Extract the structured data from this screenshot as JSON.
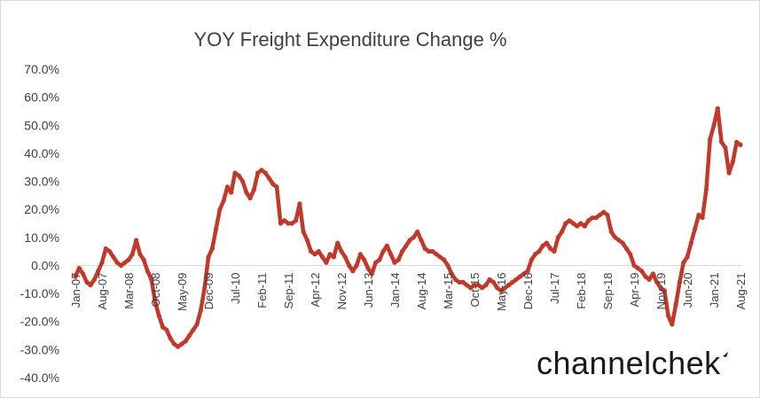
{
  "chart_data": {
    "type": "line",
    "title": "YOY Freight Expenditure Change %",
    "xlabel": "",
    "ylabel": "",
    "ylim": [
      -40,
      70
    ],
    "ytick_values": [
      70,
      60,
      50,
      40,
      30,
      20,
      10,
      0,
      -10,
      -20,
      -30,
      -40
    ],
    "ytick_labels": [
      "70.0%",
      "60.0%",
      "50.0%",
      "40.0%",
      "30.0%",
      "20.0%",
      "10.0%",
      "0.0%",
      "-10.0%",
      "-20.0%",
      "-30.0%",
      "-40.0%"
    ],
    "xtick_labels": [
      "Jan-07",
      "Aug-07",
      "Mar-08",
      "Oct-08",
      "May-09",
      "Dec-09",
      "Jul-10",
      "Feb-11",
      "Sep-11",
      "Apr-12",
      "Nov-12",
      "Jun-13",
      "Jan-14",
      "Aug-14",
      "Mar-15",
      "Oct-15",
      "May-16",
      "Dec-16",
      "Jul-17",
      "Feb-18",
      "Sep-18",
      "Apr-19",
      "Nov-19",
      "Jun-20",
      "Jan-21",
      "Aug-21"
    ],
    "x_start": "Jan-07",
    "x_frequency": "monthly",
    "grid": false,
    "legend": "none",
    "series": [
      {
        "name": "YOY Freight Expenditure Change %",
        "color": "#c0392b",
        "values": [
          -4,
          -1,
          -3,
          -6,
          -7,
          -5,
          -2,
          1,
          6,
          5,
          3,
          1,
          0,
          1,
          2,
          4,
          9,
          4,
          2,
          -2,
          -5,
          -13,
          -18,
          -22,
          -23,
          -26,
          -28,
          -29,
          -28,
          -27,
          -25,
          -23,
          -21,
          -16,
          -8,
          3,
          6,
          13,
          20,
          23,
          28,
          26,
          33,
          32,
          30,
          26,
          24,
          27,
          33,
          34,
          33,
          31,
          29,
          28,
          15,
          16,
          15,
          15,
          16,
          22,
          12,
          9,
          5,
          4,
          5,
          3,
          1,
          4,
          3,
          8,
          5,
          3,
          0,
          -2,
          0,
          4,
          2,
          -1,
          -3,
          1,
          2,
          5,
          7,
          4,
          1,
          2,
          5,
          7,
          9,
          10,
          12,
          9,
          6,
          5,
          5,
          4,
          3,
          2,
          0,
          -3,
          -5,
          -6,
          -6,
          -7,
          -8,
          -7,
          -7,
          -8,
          -7,
          -5,
          -6,
          -8,
          -9,
          -8,
          -7,
          -6,
          -5,
          -4,
          -3,
          -2,
          2,
          4,
          5,
          7,
          8,
          6,
          5,
          10,
          12,
          15,
          16,
          15,
          14,
          15,
          14,
          16,
          17,
          17,
          18,
          19,
          18,
          12,
          10,
          9,
          8,
          6,
          4,
          0,
          -1,
          -2,
          -4,
          -5,
          -3,
          -6,
          -8,
          -9,
          -18,
          -21,
          -14,
          -6,
          1,
          3,
          8,
          13,
          18,
          17,
          27,
          45,
          50,
          56,
          44,
          42,
          33,
          37,
          44,
          43
        ]
      }
    ]
  },
  "branding": {
    "logo_text": "channelchek"
  }
}
